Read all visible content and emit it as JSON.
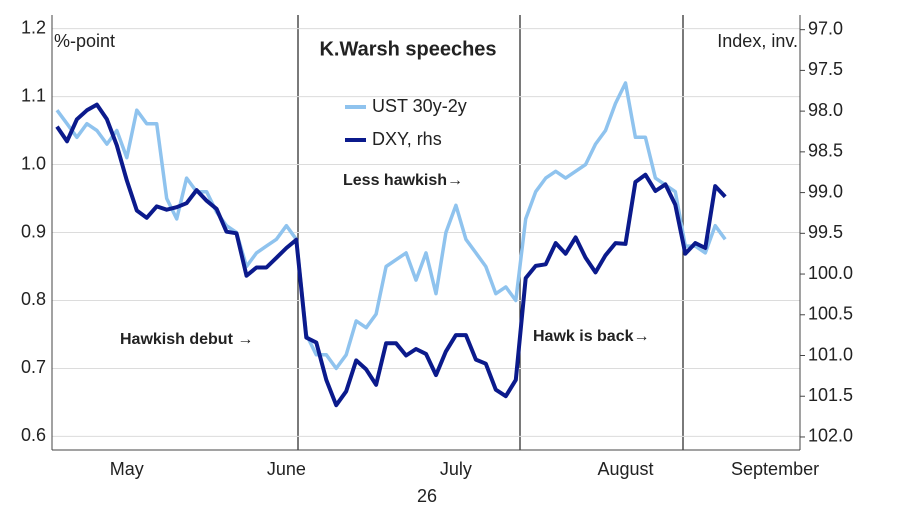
{
  "chart_data": {
    "type": "line",
    "title": "K.Warsh speeches",
    "y_label": "%-point",
    "y2_label": "Index, inv.",
    "x_label": "26",
    "annotations": [
      "Less hawkish→",
      "Hawkish debut →",
      "Hawk is back→"
    ],
    "categories": [
      null,
      null,
      null,
      null,
      null,
      null,
      null,
      "May",
      null,
      null,
      null,
      null,
      null,
      null,
      null,
      null,
      null,
      null,
      null,
      null,
      null,
      null,
      null,
      "June",
      null,
      null,
      null,
      null,
      null,
      null,
      null,
      null,
      null,
      null,
      null,
      null,
      null,
      null,
      null,
      null,
      "July",
      null,
      null,
      null,
      null,
      null,
      null,
      null,
      null,
      null,
      null,
      null,
      null,
      null,
      null,
      null,
      null,
      "August",
      null,
      null,
      null,
      null,
      null,
      null,
      null,
      null,
      null,
      null,
      null,
      null,
      null,
      null,
      "September",
      null,
      null
    ],
    "series": [
      {
        "name": "UST 30y-2y",
        "color": "#8fc3ee",
        "values": [
          1.08,
          1.06,
          1.04,
          1.06,
          1.05,
          1.03,
          1.05,
          1.01,
          1.08,
          1.06,
          1.06,
          0.95,
          0.92,
          0.98,
          0.96,
          0.96,
          0.93,
          0.91,
          0.9,
          0.85,
          0.87,
          0.88,
          0.89,
          0.91,
          0.89,
          0.75,
          0.72,
          0.72,
          0.7,
          0.72,
          0.77,
          0.76,
          0.78,
          0.85,
          0.86,
          0.87,
          0.83,
          0.87,
          0.81,
          0.9,
          0.94,
          0.89,
          0.87,
          0.85,
          0.81,
          0.82,
          0.8,
          0.92,
          0.96,
          0.98,
          0.99,
          0.98,
          0.99,
          1.0,
          1.03,
          1.05,
          1.09,
          1.12,
          1.04,
          1.04,
          0.98,
          0.97,
          0.96,
          0.88,
          0.88,
          0.87,
          0.91,
          0.89,
          null,
          null,
          null,
          null,
          null,
          null,
          null
        ]
      },
      {
        "name": "DXY, rhs",
        "color": "#0b1a8c",
        "axis": "y2",
        "values": [
          98.19,
          98.37,
          98.1,
          97.99,
          97.92,
          98.1,
          98.42,
          98.85,
          99.22,
          99.31,
          99.17,
          99.21,
          99.18,
          99.13,
          98.97,
          99.1,
          99.2,
          99.48,
          99.5,
          100.02,
          99.92,
          99.92,
          99.8,
          99.68,
          99.58,
          100.78,
          100.84,
          101.3,
          101.61,
          101.44,
          101.06,
          101.17,
          101.36,
          100.85,
          100.85,
          101.0,
          100.92,
          100.98,
          101.24,
          100.95,
          100.75,
          100.75,
          101.05,
          101.1,
          101.42,
          101.5,
          101.3,
          100.05,
          99.9,
          99.88,
          99.62,
          99.75,
          99.55,
          99.8,
          99.98,
          99.77,
          99.62,
          99.63,
          98.87,
          98.78,
          98.98,
          98.9,
          99.15,
          99.75,
          99.62,
          99.68,
          98.92,
          99.05,
          null,
          null,
          null,
          null,
          null,
          null,
          null
        ]
      }
    ],
    "ylim": [
      0.58,
      1.22
    ],
    "yticks": [
      0.6,
      0.7,
      0.8,
      0.9,
      {
        "value": 1,
        "label": "1.0"
      },
      1.1,
      1.2
    ],
    "y2lim": [
      96.82,
      102.16
    ],
    "y2_inverted": true,
    "y2ticks": [
      {
        "value": 97,
        "label": "97.0"
      },
      97.5,
      {
        "value": 98,
        "label": "98.0"
      },
      98.5,
      {
        "value": 99,
        "label": "99.0"
      },
      99.5,
      {
        "value": 100,
        "label": "100.0"
      },
      100.5,
      {
        "value": 101,
        "label": "101.0"
      },
      101.5,
      {
        "value": 102,
        "label": "102.0"
      }
    ],
    "grid": true
  }
}
